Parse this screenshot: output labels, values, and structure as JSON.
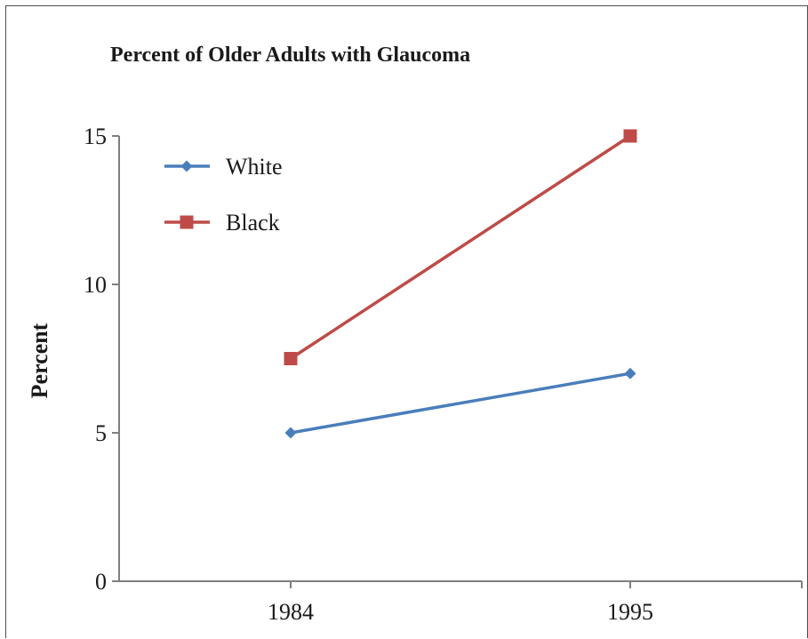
{
  "chart_data": {
    "type": "line",
    "title": "Percent of Older Adults with Glaucoma",
    "xlabel": "",
    "ylabel": "Percent",
    "categories": [
      "1984",
      "1995"
    ],
    "ylim": [
      0,
      15
    ],
    "yticks": [
      0,
      5,
      10,
      15
    ],
    "grid": false,
    "legend": "top-left",
    "series": [
      {
        "name": "White",
        "values": [
          5,
          7
        ],
        "color": "#4a7ebb",
        "marker": "diamond"
      },
      {
        "name": "Black",
        "values": [
          7.5,
          15
        ],
        "color": "#be4b48",
        "marker": "square"
      }
    ]
  }
}
